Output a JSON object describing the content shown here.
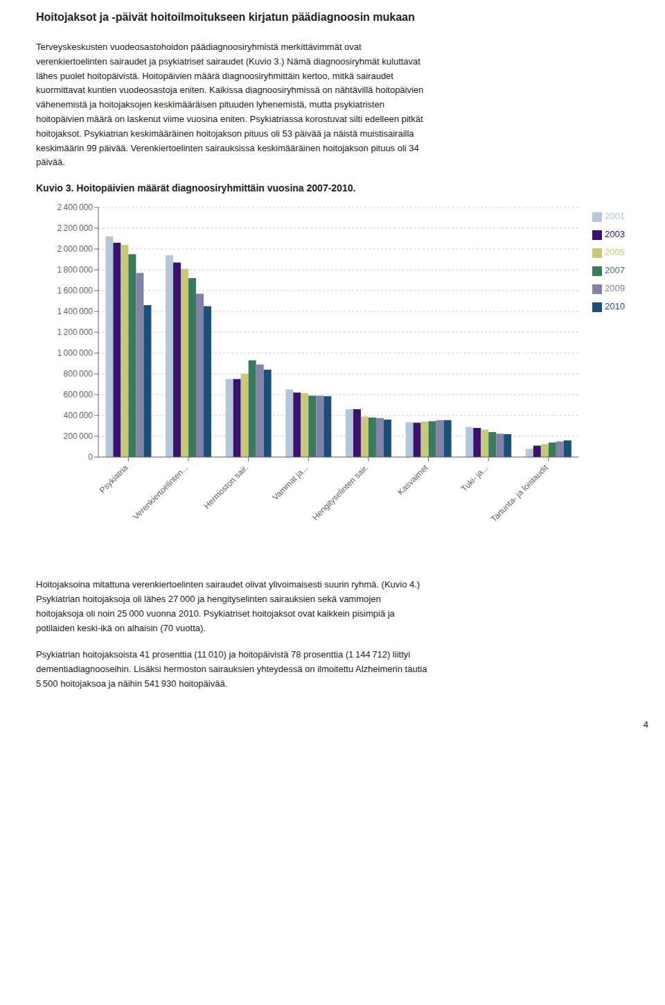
{
  "chart_data": {
    "type": "bar",
    "title": "Kuvio 3. Hoitopäivien määrät diagnoosiryhmittäin vuosina 2007-2010.",
    "annotations": [
      "Hoitojaksot ja -päivät hoitoilmoitukseen kirjatun päädiagnoosin mukaan",
      "Terveyskeskusten vuodeosastohoidon päädiagnoosiryhmistä merkittävimmät ovat\nverenkiertoelinten sairaudet ja psykiatriset sairaudet (Kuvio 3.) Nämä diagnoosiryhmät kuluttavat\nlähes puolet hoitopäivistä. Hoitopäivien määrä diagnoosiryhmittäin kertoo, mitkä sairaudet\nkuormittavat kuntien vuodeosastoja eniten. Kaikissa diagnoosiryhmissä on nähtävillä hoitopäivien\nvähenemistä ja hoitojaksojen keskimääräisen pituuden lyhenemistä, mutta psykiatristen\nhoitopäivien määrä on laskenut viime vuosina eniten. Psykiatriassa korostuvat silti edelleen pitkät\nhoitojaksot. Psykiatrian keskimääräinen hoitojakson pituus oli 53 päivää ja näistä muistisairailla\nkeskimäärin 99 päivää. Verenkiertoelinten sairauksissa keskimääräinen hoitojakson pituus oli 34\npäivää.",
      "Hoitojaksoina mitattuna verenkiertoelinten sairaudet olivat ylivoimaisesti suurin ryhmä. (Kuvio 4.)\nPsykiatrian hoitojaksoja oli lähes 27 000 ja hengityselinten sairauksien sekä vammojen\nhoitojaksoja oli noin 25 000 vuonna 2010. Psykiatriset hoitojaksot ovat kaikkein pisimpiä ja\npotilaiden keski-ikä on alhaisin (70 vuotta).",
      "Psykiatrian hoitojaksoista 41 prosenttia (11 010) ja hoitopäivistä 78 prosenttia (1 144 712) liittyi\ndementiadiagnooseihin. Lisäksi hermoston sairauksien yhteydessä on ilmoitettu Alzheimerin tautia\n5 500 hoitojaksoa ja näihin 541 930 hoitopäivää.",
      "4"
    ],
    "categories": [
      "Psykiatria",
      "Verenkiertoelinten...",
      "Hermoston sair.",
      "Vammat ja...",
      "Hengityselinten sair.",
      "Kasvaimet",
      "Tuki- ja...",
      "Tartunta- ja loistaudit"
    ],
    "series": [
      {
        "name": "2001",
        "color": "#b4c6d9",
        "values": [
          2120000,
          1940000,
          750000,
          650000,
          460000,
          335000,
          290000,
          80000
        ]
      },
      {
        "name": "2003",
        "color": "#3b1170",
        "values": [
          2060000,
          1870000,
          750000,
          620000,
          460000,
          330000,
          280000,
          110000
        ]
      },
      {
        "name": "2005",
        "color": "#c8c87a",
        "values": [
          2040000,
          1810000,
          800000,
          615000,
          390000,
          340000,
          265000,
          125000
        ]
      },
      {
        "name": "2007",
        "color": "#3a7a5c",
        "values": [
          1950000,
          1720000,
          930000,
          590000,
          380000,
          345000,
          240000,
          140000
        ]
      },
      {
        "name": "2009",
        "color": "#8282aa",
        "values": [
          1770000,
          1570000,
          890000,
          590000,
          375000,
          355000,
          225000,
          150000
        ]
      },
      {
        "name": "2010",
        "color": "#1a4f78",
        "values": [
          1460000,
          1450000,
          840000,
          585000,
          360000,
          355000,
          220000,
          160000
        ]
      }
    ],
    "ylim": [
      0,
      2400000
    ],
    "yticks": [
      0,
      {
        "value": 200000,
        "label": "200 000"
      },
      {
        "value": 400000,
        "label": "400 000"
      },
      {
        "value": 600000,
        "label": "600 000"
      },
      {
        "value": 800000,
        "label": "800 000"
      },
      {
        "value": 1000000,
        "label": "1 000 000"
      },
      {
        "value": 1200000,
        "label": "1 200 000"
      },
      {
        "value": 1400000,
        "label": "1 400 000"
      },
      {
        "value": 1600000,
        "label": "1 600 000"
      },
      {
        "value": 1800000,
        "label": "1 800 000"
      },
      {
        "value": 2000000,
        "label": "2 000 000"
      },
      {
        "value": 2200000,
        "label": "2 200 000"
      },
      {
        "value": 2400000,
        "label": "2 400 000"
      }
    ],
    "grid": true,
    "legend": "right"
  }
}
